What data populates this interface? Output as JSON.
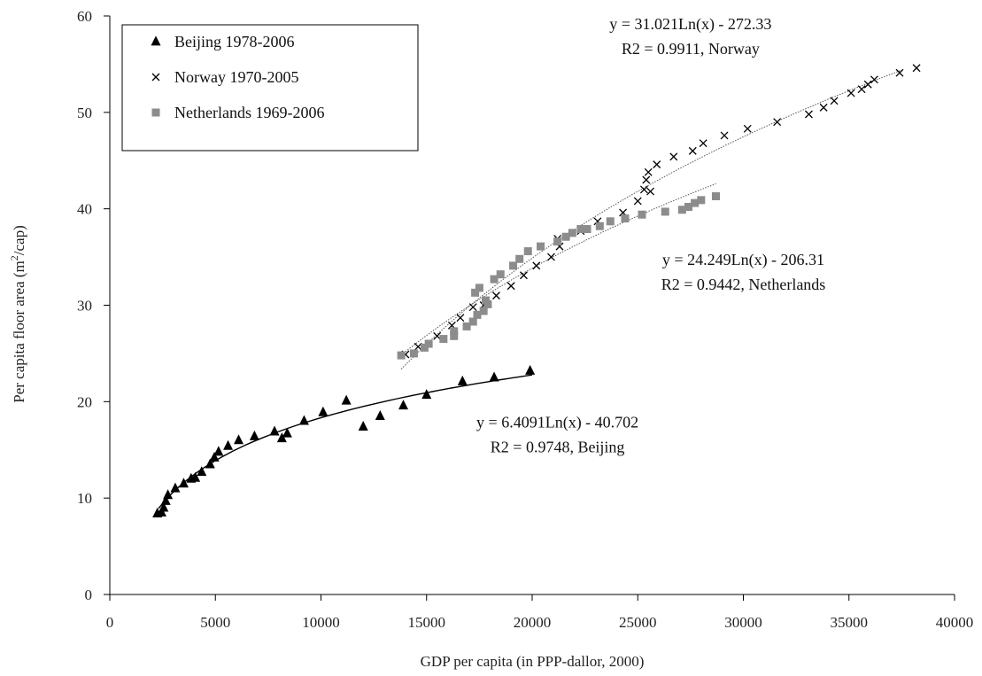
{
  "chart_data": {
    "type": "scatter",
    "xlabel": "GDP per capita (in PPP-dallor, 2000)",
    "ylabel": {
      "prefix": "Per capita floor area (m",
      "sup": "2",
      "suffix": "/cap)"
    },
    "xlim": [
      0,
      40000
    ],
    "ylim": [
      0,
      60
    ],
    "xticks": [
      0,
      5000,
      10000,
      15000,
      20000,
      25000,
      30000,
      35000,
      40000
    ],
    "yticks": [
      0,
      10,
      20,
      30,
      40,
      50,
      60
    ],
    "grid": false,
    "legend_position": "top-left",
    "series": [
      {
        "name": "Beijing 1978-2006",
        "marker": "triangle",
        "color": "#000000",
        "trend": {
          "a": 6.4091,
          "b": -40.702,
          "x_range": [
            2300,
            20000
          ],
          "style": "solid"
        },
        "points": [
          [
            2250,
            8.4
          ],
          [
            2450,
            8.5
          ],
          [
            2550,
            9.0
          ],
          [
            2650,
            9.7
          ],
          [
            2750,
            10.3
          ],
          [
            3100,
            11.0
          ],
          [
            3500,
            11.5
          ],
          [
            3850,
            12.0
          ],
          [
            4050,
            12.1
          ],
          [
            4350,
            12.7
          ],
          [
            4750,
            13.5
          ],
          [
            4950,
            14.2
          ],
          [
            5150,
            14.8
          ],
          [
            5600,
            15.4
          ],
          [
            6100,
            16.0
          ],
          [
            6850,
            16.4
          ],
          [
            7800,
            16.9
          ],
          [
            8150,
            16.2
          ],
          [
            8400,
            16.7
          ],
          [
            9200,
            18.0
          ],
          [
            10100,
            18.9
          ],
          [
            11200,
            20.1
          ],
          [
            12000,
            17.4
          ],
          [
            12800,
            18.5
          ],
          [
            13900,
            19.6
          ],
          [
            15000,
            20.7
          ],
          [
            16700,
            22.1
          ],
          [
            18200,
            22.5
          ],
          [
            19900,
            23.2
          ]
        ]
      },
      {
        "name": "Norway 1970-2005",
        "marker": "cross",
        "color": "#000000",
        "trend": {
          "a": 31.021,
          "b": -272.33,
          "x_range": [
            13800,
            37500
          ],
          "style": "dotted"
        },
        "points": [
          [
            14000,
            24.9
          ],
          [
            14600,
            25.7
          ],
          [
            15500,
            26.8
          ],
          [
            16200,
            27.9
          ],
          [
            16600,
            28.7
          ],
          [
            17200,
            29.8
          ],
          [
            17700,
            30.0
          ],
          [
            18300,
            31.0
          ],
          [
            19000,
            32.0
          ],
          [
            19600,
            33.1
          ],
          [
            20200,
            34.1
          ],
          [
            20900,
            35.0
          ],
          [
            21300,
            36.1
          ],
          [
            21200,
            36.9
          ],
          [
            22300,
            37.7
          ],
          [
            23100,
            38.7
          ],
          [
            24300,
            39.6
          ],
          [
            25000,
            40.8
          ],
          [
            25300,
            42.0
          ],
          [
            25400,
            43.0
          ],
          [
            25500,
            43.8
          ],
          [
            25600,
            41.8
          ],
          [
            25900,
            44.6
          ],
          [
            26700,
            45.4
          ],
          [
            27600,
            46.0
          ],
          [
            28100,
            46.8
          ],
          [
            29100,
            47.6
          ],
          [
            30200,
            48.3
          ],
          [
            31600,
            49.0
          ],
          [
            33100,
            49.8
          ],
          [
            33800,
            50.5
          ],
          [
            34300,
            51.2
          ],
          [
            35100,
            52.0
          ],
          [
            35600,
            52.4
          ],
          [
            35900,
            52.9
          ],
          [
            36200,
            53.4
          ],
          [
            37400,
            54.1
          ],
          [
            38200,
            54.6
          ]
        ]
      },
      {
        "name": "Netherlands 1969-2006",
        "marker": "square",
        "color": "#8c8c8c",
        "trend": {
          "a": 24.249,
          "b": -206.31,
          "x_range": [
            13800,
            28700
          ],
          "style": "dotted"
        },
        "points": [
          [
            13800,
            24.8
          ],
          [
            14400,
            25.0
          ],
          [
            14900,
            25.6
          ],
          [
            15100,
            26.0
          ],
          [
            15800,
            26.5
          ],
          [
            16300,
            27.3
          ],
          [
            16300,
            26.8
          ],
          [
            16900,
            27.8
          ],
          [
            17200,
            28.3
          ],
          [
            17400,
            29.0
          ],
          [
            17700,
            29.4
          ],
          [
            17800,
            30.5
          ],
          [
            17900,
            30.1
          ],
          [
            17300,
            31.3
          ],
          [
            17500,
            31.8
          ],
          [
            18200,
            32.7
          ],
          [
            18500,
            33.2
          ],
          [
            19100,
            34.1
          ],
          [
            19400,
            34.8
          ],
          [
            19800,
            35.6
          ],
          [
            20400,
            36.1
          ],
          [
            21200,
            36.6
          ],
          [
            21600,
            37.1
          ],
          [
            21900,
            37.5
          ],
          [
            22300,
            37.9
          ],
          [
            22600,
            37.9
          ],
          [
            23200,
            38.2
          ],
          [
            23700,
            38.7
          ],
          [
            24400,
            39.0
          ],
          [
            25200,
            39.4
          ],
          [
            26300,
            39.7
          ],
          [
            27100,
            39.9
          ],
          [
            27400,
            40.2
          ],
          [
            27700,
            40.6
          ],
          [
            28000,
            40.9
          ],
          [
            28700,
            41.3
          ]
        ]
      }
    ],
    "annotations": [
      {
        "lines": [
          "y = 31.021Ln(x) - 272.33",
          "R2 = 0.9911, Norway"
        ],
        "x": 27500,
        "y": 58.6
      },
      {
        "lines": [
          "y = 24.249Ln(x) - 206.31",
          "R2 = 0.9442, Netherlands"
        ],
        "x": 30000,
        "y": 34.2
      },
      {
        "lines": [
          "y = 6.4091Ln(x) - 40.702",
          "R2 = 0.9748, Beijing"
        ],
        "x": 21200,
        "y": 17.3
      }
    ]
  }
}
